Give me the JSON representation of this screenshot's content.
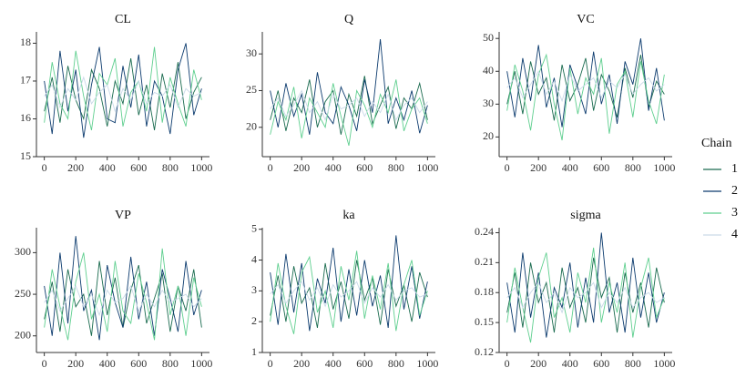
{
  "legend_title": "Chain",
  "chart_data": [
    {
      "type": "line",
      "title": "CL",
      "x": [
        0,
        50,
        100,
        150,
        200,
        250,
        300,
        350,
        400,
        450,
        500,
        550,
        600,
        650,
        700,
        750,
        800,
        850,
        900,
        950,
        1000
      ],
      "series": [
        {
          "name": "1",
          "color": "#1a6b4f",
          "values": [
            16.2,
            17.1,
            15.9,
            17.4,
            16.5,
            16.0,
            17.3,
            16.8,
            15.8,
            17.0,
            16.4,
            17.6,
            16.1,
            16.9,
            15.7,
            17.2,
            16.3,
            17.5,
            16.0,
            16.7,
            17.1
          ]
        },
        {
          "name": "2",
          "color": "#0c3b6e",
          "values": [
            17.0,
            15.6,
            17.8,
            16.2,
            17.3,
            15.5,
            16.9,
            17.9,
            16.0,
            15.9,
            17.4,
            16.3,
            17.7,
            15.8,
            17.0,
            16.6,
            15.6,
            17.3,
            18.0,
            16.1,
            16.8
          ]
        },
        {
          "name": "3",
          "color": "#5fcf8f",
          "values": [
            15.9,
            17.5,
            16.4,
            16.0,
            17.8,
            16.6,
            15.7,
            17.2,
            16.9,
            17.6,
            15.8,
            16.7,
            17.0,
            16.2,
            17.9,
            15.9,
            17.1,
            16.4,
            15.8,
            17.3,
            16.5
          ]
        },
        {
          "name": "4",
          "color": "#c9d9e8",
          "values": [
            16.6,
            16.9,
            16.3,
            16.8,
            16.5,
            17.1,
            16.4,
            16.7,
            16.9,
            16.2,
            16.8,
            16.5,
            17.0,
            16.4,
            16.7,
            16.6,
            16.9,
            16.3,
            16.8,
            16.6,
            16.7
          ]
        }
      ],
      "xlim": [
        -50,
        1050
      ],
      "ylim": [
        15,
        18.3
      ],
      "xticks": [
        0,
        200,
        400,
        600,
        800,
        1000
      ],
      "yticks": [
        15,
        16,
        17,
        18
      ]
    },
    {
      "type": "line",
      "title": "Q",
      "x": [
        0,
        50,
        100,
        150,
        200,
        250,
        300,
        350,
        400,
        450,
        500,
        550,
        600,
        650,
        700,
        750,
        800,
        850,
        900,
        950,
        1000
      ],
      "series": [
        {
          "name": "1",
          "color": "#1a6b4f",
          "values": [
            21,
            25,
            19.5,
            24,
            22,
            26.5,
            20,
            23.5,
            25,
            19,
            24.5,
            21.5,
            27,
            20.5,
            23,
            25.5,
            19.8,
            24,
            22.5,
            26,
            21
          ]
        },
        {
          "name": "2",
          "color": "#0c3b6e",
          "values": [
            25,
            20,
            26,
            21.5,
            24.5,
            19,
            27.5,
            22,
            20.5,
            25.5,
            23,
            19.5,
            26.5,
            22,
            32,
            20.5,
            24,
            21,
            25,
            19.2,
            23
          ]
        },
        {
          "name": "3",
          "color": "#5fcf8f",
          "values": [
            19,
            23.5,
            21,
            25.5,
            18.5,
            24,
            22,
            20,
            26,
            21.5,
            17.5,
            25,
            23,
            20,
            24.5,
            22,
            26.5,
            19.5,
            22.5,
            24,
            20.5
          ]
        },
        {
          "name": "4",
          "color": "#c9d9e8",
          "values": [
            22.5,
            24,
            21.5,
            23,
            25,
            22,
            23.5,
            21,
            24.5,
            22.5,
            23,
            24,
            21.5,
            23.5,
            22,
            24.5,
            21,
            23,
            24,
            22,
            23.5
          ]
        }
      ],
      "xlim": [
        -50,
        1050
      ],
      "ylim": [
        16,
        33
      ],
      "xticks": [
        0,
        200,
        400,
        600,
        800,
        1000
      ],
      "yticks": [
        20,
        25,
        30
      ]
    },
    {
      "type": "line",
      "title": "VC",
      "x": [
        0,
        50,
        100,
        150,
        200,
        250,
        300,
        350,
        400,
        450,
        500,
        550,
        600,
        650,
        700,
        750,
        800,
        850,
        900,
        950,
        1000
      ],
      "series": [
        {
          "name": "1",
          "color": "#1a6b4f",
          "values": [
            30,
            40,
            27,
            43,
            33,
            38,
            25,
            42,
            31,
            36,
            44,
            28,
            39,
            34,
            26,
            41,
            32,
            45,
            29,
            37,
            33
          ]
        },
        {
          "name": "2",
          "color": "#0c3b6e",
          "values": [
            40,
            26,
            44,
            31,
            48,
            29,
            38,
            23,
            42,
            35,
            27,
            46,
            30,
            39,
            24,
            43,
            36,
            50,
            28,
            41,
            25
          ]
        },
        {
          "name": "3",
          "color": "#5fcf8f",
          "values": [
            28,
            42,
            34,
            22,
            39,
            45,
            30,
            19,
            41,
            27,
            38,
            33,
            44,
            21,
            36,
            40,
            26,
            43,
            31,
            24,
            39
          ]
        },
        {
          "name": "4",
          "color": "#c9d9e8",
          "values": [
            35,
            38,
            32,
            36,
            40,
            33,
            37,
            31,
            39,
            34,
            36,
            38,
            32,
            37,
            35,
            39,
            33,
            36,
            38,
            34,
            36
          ]
        }
      ],
      "xlim": [
        -50,
        1050
      ],
      "ylim": [
        14,
        52
      ],
      "xticks": [
        0,
        200,
        400,
        600,
        800,
        1000
      ],
      "yticks": [
        20,
        30,
        40,
        50
      ]
    },
    {
      "type": "line",
      "title": "VP",
      "x": [
        0,
        50,
        100,
        150,
        200,
        250,
        300,
        350,
        400,
        450,
        500,
        550,
        600,
        650,
        700,
        750,
        800,
        850,
        900,
        950,
        1000
      ],
      "series": [
        {
          "name": "1",
          "color": "#1a6b4f",
          "values": [
            220,
            265,
            205,
            280,
            235,
            250,
            200,
            290,
            225,
            270,
            210,
            255,
            285,
            215,
            245,
            275,
            205,
            260,
            230,
            280,
            210
          ]
        },
        {
          "name": "2",
          "color": "#0c3b6e",
          "values": [
            260,
            200,
            300,
            215,
            320,
            230,
            255,
            195,
            285,
            240,
            210,
            295,
            220,
            265,
            200,
            280,
            245,
            205,
            290,
            225,
            255
          ]
        },
        {
          "name": "3",
          "color": "#5fcf8f",
          "values": [
            210,
            280,
            235,
            195,
            265,
            300,
            220,
            250,
            205,
            290,
            230,
            215,
            275,
            240,
            195,
            305,
            225,
            260,
            200,
            270,
            235
          ]
        },
        {
          "name": "4",
          "color": "#c9d9e8",
          "values": [
            240,
            255,
            230,
            245,
            260,
            235,
            250,
            225,
            255,
            240,
            245,
            260,
            230,
            250,
            235,
            255,
            240,
            245,
            250,
            235,
            245
          ]
        }
      ],
      "xlim": [
        -50,
        1050
      ],
      "ylim": [
        180,
        330
      ],
      "xticks": [
        0,
        200,
        400,
        600,
        800,
        1000
      ],
      "yticks": [
        200,
        250,
        300
      ]
    },
    {
      "type": "line",
      "title": "ka",
      "x": [
        0,
        50,
        100,
        150,
        200,
        250,
        300,
        350,
        400,
        450,
        500,
        550,
        600,
        650,
        700,
        750,
        800,
        850,
        900,
        950,
        1000
      ],
      "series": [
        {
          "name": "1",
          "color": "#1a6b4f",
          "values": [
            2.2,
            3.5,
            2.0,
            3.8,
            2.6,
            3.1,
            1.8,
            3.9,
            2.4,
            3.3,
            2.1,
            4.0,
            2.7,
            3.4,
            1.9,
            3.7,
            2.5,
            3.2,
            2.0,
            3.6,
            2.8
          ]
        },
        {
          "name": "2",
          "color": "#0c3b6e",
          "values": [
            3.6,
            1.9,
            4.2,
            2.3,
            3.9,
            1.7,
            3.4,
            2.6,
            4.4,
            2.0,
            3.7,
            2.2,
            4.0,
            2.5,
            3.5,
            1.8,
            4.8,
            2.4,
            3.8,
            2.1,
            3.3
          ]
        },
        {
          "name": "3",
          "color": "#5fcf8f",
          "values": [
            2.0,
            3.9,
            2.5,
            1.6,
            3.6,
            4.1,
            2.3,
            3.0,
            1.8,
            3.8,
            2.7,
            4.3,
            2.1,
            3.5,
            2.4,
            3.9,
            1.7,
            3.2,
            4.0,
            2.2,
            3.0
          ]
        },
        {
          "name": "4",
          "color": "#c9d9e8",
          "values": [
            2.9,
            3.2,
            2.6,
            3.0,
            3.3,
            2.7,
            3.1,
            2.5,
            3.2,
            2.8,
            3.0,
            3.3,
            2.6,
            3.1,
            2.8,
            3.2,
            2.7,
            3.0,
            3.1,
            2.8,
            2.9
          ]
        }
      ],
      "xlim": [
        -50,
        1050
      ],
      "ylim": [
        1,
        5.05
      ],
      "xticks": [
        0,
        200,
        400,
        600,
        800,
        1000
      ],
      "yticks": [
        1,
        2,
        3,
        4,
        5
      ]
    },
    {
      "type": "line",
      "title": "sigma",
      "x": [
        0,
        50,
        100,
        150,
        200,
        250,
        300,
        350,
        400,
        450,
        500,
        550,
        600,
        650,
        700,
        750,
        800,
        850,
        900,
        950,
        1000
      ],
      "series": [
        {
          "name": "1",
          "color": "#1a6b4f",
          "values": [
            0.16,
            0.2,
            0.145,
            0.21,
            0.17,
            0.19,
            0.14,
            0.205,
            0.165,
            0.185,
            0.15,
            0.215,
            0.175,
            0.195,
            0.14,
            0.2,
            0.16,
            0.19,
            0.145,
            0.205,
            0.17
          ]
        },
        {
          "name": "2",
          "color": "#0c3b6e",
          "values": [
            0.19,
            0.14,
            0.22,
            0.155,
            0.2,
            0.135,
            0.185,
            0.165,
            0.21,
            0.145,
            0.195,
            0.15,
            0.24,
            0.16,
            0.19,
            0.14,
            0.215,
            0.155,
            0.2,
            0.15,
            0.18
          ]
        },
        {
          "name": "3",
          "color": "#5fcf8f",
          "values": [
            0.15,
            0.205,
            0.165,
            0.13,
            0.195,
            0.22,
            0.155,
            0.175,
            0.14,
            0.2,
            0.17,
            0.225,
            0.15,
            0.19,
            0.16,
            0.21,
            0.135,
            0.185,
            0.215,
            0.155,
            0.175
          ]
        },
        {
          "name": "4",
          "color": "#c9d9e8",
          "values": [
            0.175,
            0.185,
            0.165,
            0.18,
            0.19,
            0.17,
            0.18,
            0.16,
            0.185,
            0.175,
            0.18,
            0.19,
            0.165,
            0.18,
            0.17,
            0.185,
            0.165,
            0.175,
            0.18,
            0.17,
            0.175
          ]
        }
      ],
      "xlim": [
        -50,
        1050
      ],
      "ylim": [
        0.12,
        0.245
      ],
      "xticks": [
        0,
        200,
        400,
        600,
        800,
        1000
      ],
      "yticks": [
        0.12,
        0.15,
        0.18,
        0.21,
        0.24
      ]
    }
  ]
}
